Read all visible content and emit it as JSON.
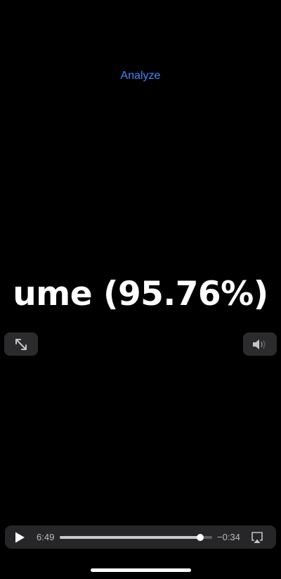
{
  "header": {
    "analyze_label": "Analyze"
  },
  "video": {
    "caption_text": "ume (95.76%)"
  },
  "icons": {
    "fullscreen": "expand-arrows-icon",
    "volume": "speaker-icon",
    "play": "play-icon",
    "airplay": "airplay-icon"
  },
  "playback": {
    "elapsed": "6:49",
    "remaining": "−0:34",
    "progress_fraction": 0.92
  },
  "colors": {
    "background": "#000000",
    "accent_link": "#3a8cff",
    "control_bg": "#262628"
  }
}
